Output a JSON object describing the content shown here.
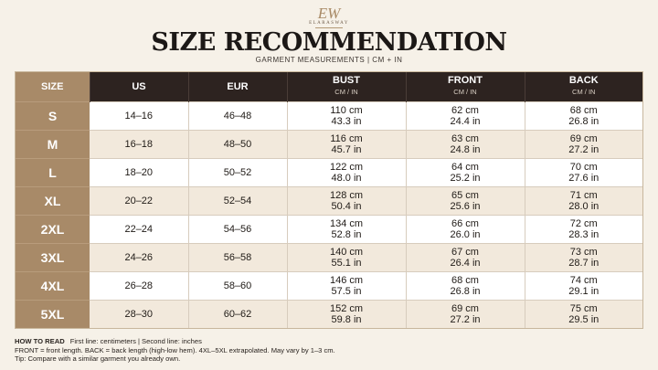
{
  "logo": {
    "mark": "EW",
    "name": "ELARASWAY"
  },
  "title": "SIZE RECOMMENDATION",
  "subtitle": "GARMENT MEASUREMENTS | CM + IN",
  "headers": {
    "size": "SIZE",
    "us": "US",
    "eur": "EUR",
    "bust": "BUST",
    "front": "FRONT",
    "back": "BACK",
    "unit": "CM / IN"
  },
  "rows": [
    {
      "size": "S",
      "us": "14–16",
      "eur": "46–48",
      "bust_cm": "110 cm",
      "bust_in": "43.3 in",
      "front_cm": "62 cm",
      "front_in": "24.4 in",
      "back_cm": "68 cm",
      "back_in": "26.8 in"
    },
    {
      "size": "M",
      "us": "16–18",
      "eur": "48–50",
      "bust_cm": "116 cm",
      "bust_in": "45.7 in",
      "front_cm": "63 cm",
      "front_in": "24.8 in",
      "back_cm": "69 cm",
      "back_in": "27.2 in"
    },
    {
      "size": "L",
      "us": "18–20",
      "eur": "50–52",
      "bust_cm": "122 cm",
      "bust_in": "48.0 in",
      "front_cm": "64 cm",
      "front_in": "25.2 in",
      "back_cm": "70 cm",
      "back_in": "27.6 in"
    },
    {
      "size": "XL",
      "us": "20–22",
      "eur": "52–54",
      "bust_cm": "128 cm",
      "bust_in": "50.4 in",
      "front_cm": "65 cm",
      "front_in": "25.6 in",
      "back_cm": "71 cm",
      "back_in": "28.0 in"
    },
    {
      "size": "2XL",
      "us": "22–24",
      "eur": "54–56",
      "bust_cm": "134 cm",
      "bust_in": "52.8 in",
      "front_cm": "66 cm",
      "front_in": "26.0 in",
      "back_cm": "72 cm",
      "back_in": "28.3 in"
    },
    {
      "size": "3XL",
      "us": "24–26",
      "eur": "56–58",
      "bust_cm": "140 cm",
      "bust_in": "55.1 in",
      "front_cm": "67 cm",
      "front_in": "26.4 in",
      "back_cm": "73 cm",
      "back_in": "28.7 in"
    },
    {
      "size": "4XL",
      "us": "26–28",
      "eur": "58–60",
      "bust_cm": "146 cm",
      "bust_in": "57.5 in",
      "front_cm": "68 cm",
      "front_in": "26.8 in",
      "back_cm": "74 cm",
      "back_in": "29.1 in"
    },
    {
      "size": "5XL",
      "us": "28–30",
      "eur": "60–62",
      "bust_cm": "152 cm",
      "bust_in": "59.8 in",
      "front_cm": "69 cm",
      "front_in": "27.2 in",
      "back_cm": "75 cm",
      "back_in": "29.5 in"
    }
  ],
  "notes": {
    "heading": "HOW TO READ",
    "line1": "First line: centimeters  |  Second line: inches",
    "line2": "FRONT = front length. BACK = back length (high-low hem). 4XL–5XL extrapolated. May vary by 1–3 cm.",
    "line3": "Tip: Compare with a similar garment you already own."
  }
}
